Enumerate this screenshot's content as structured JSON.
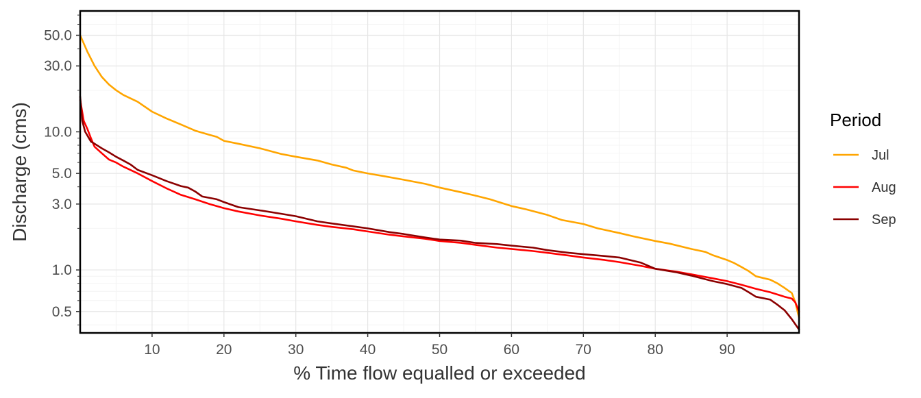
{
  "chart_data": {
    "type": "line",
    "xlabel": "% Time flow equalled or exceeded",
    "ylabel": "Discharge (cms)",
    "y_scale": "log",
    "xlim": [
      0,
      100
    ],
    "ylim": [
      0.35,
      75
    ],
    "x_ticks": [
      10,
      20,
      30,
      40,
      50,
      60,
      70,
      80,
      90
    ],
    "x_tick_labels": [
      "10",
      "20",
      "30",
      "40",
      "50",
      "60",
      "70",
      "80",
      "90"
    ],
    "y_ticks": [
      0.5,
      1,
      3,
      5,
      10,
      30,
      50
    ],
    "y_tick_labels": [
      "0.5",
      "1.0",
      "3.0",
      "5.0",
      "10.0",
      "30.0",
      "50.0"
    ],
    "grid": true,
    "legend": {
      "title": "Period",
      "position": "right"
    },
    "series": [
      {
        "name": "Jul",
        "color": "#FFA500",
        "points": [
          [
            0,
            50
          ],
          [
            1,
            38
          ],
          [
            2,
            30
          ],
          [
            3,
            25
          ],
          [
            4,
            22
          ],
          [
            5,
            20
          ],
          [
            6,
            18.5
          ],
          [
            8,
            16.5
          ],
          [
            10,
            14
          ],
          [
            12,
            12.5
          ],
          [
            14,
            11.3
          ],
          [
            16,
            10.2
          ],
          [
            18,
            9.5
          ],
          [
            19,
            9.2
          ],
          [
            20,
            8.6
          ],
          [
            22,
            8.2
          ],
          [
            25,
            7.6
          ],
          [
            28,
            6.9
          ],
          [
            30,
            6.6
          ],
          [
            33,
            6.2
          ],
          [
            35,
            5.8
          ],
          [
            37,
            5.5
          ],
          [
            38,
            5.25
          ],
          [
            40,
            5.0
          ],
          [
            42,
            4.8
          ],
          [
            45,
            4.5
          ],
          [
            48,
            4.2
          ],
          [
            50,
            3.95
          ],
          [
            53,
            3.65
          ],
          [
            55,
            3.45
          ],
          [
            57,
            3.25
          ],
          [
            60,
            2.9
          ],
          [
            62,
            2.75
          ],
          [
            65,
            2.5
          ],
          [
            67,
            2.3
          ],
          [
            70,
            2.15
          ],
          [
            72,
            2.0
          ],
          [
            75,
            1.85
          ],
          [
            77,
            1.75
          ],
          [
            80,
            1.62
          ],
          [
            82,
            1.55
          ],
          [
            85,
            1.42
          ],
          [
            87,
            1.35
          ],
          [
            88,
            1.28
          ],
          [
            90,
            1.18
          ],
          [
            91,
            1.12
          ],
          [
            92,
            1.05
          ],
          [
            93,
            0.98
          ],
          [
            94,
            0.9
          ],
          [
            96,
            0.85
          ],
          [
            97,
            0.8
          ],
          [
            98,
            0.74
          ],
          [
            99,
            0.68
          ],
          [
            99.5,
            0.58
          ],
          [
            100,
            0.45
          ]
        ]
      },
      {
        "name": "Aug",
        "color": "#FF0000",
        "points": [
          [
            0,
            17
          ],
          [
            0.5,
            12
          ],
          [
            1,
            10.5
          ],
          [
            1.5,
            9
          ],
          [
            2,
            7.8
          ],
          [
            3,
            7
          ],
          [
            4,
            6.3
          ],
          [
            5,
            6
          ],
          [
            6,
            5.6
          ],
          [
            8,
            5
          ],
          [
            10,
            4.4
          ],
          [
            12,
            3.9
          ],
          [
            14,
            3.5
          ],
          [
            16,
            3.25
          ],
          [
            18,
            3.0
          ],
          [
            20,
            2.8
          ],
          [
            22,
            2.65
          ],
          [
            25,
            2.48
          ],
          [
            28,
            2.35
          ],
          [
            30,
            2.25
          ],
          [
            33,
            2.12
          ],
          [
            35,
            2.05
          ],
          [
            38,
            1.97
          ],
          [
            40,
            1.9
          ],
          [
            43,
            1.8
          ],
          [
            45,
            1.75
          ],
          [
            48,
            1.68
          ],
          [
            50,
            1.62
          ],
          [
            53,
            1.57
          ],
          [
            55,
            1.52
          ],
          [
            58,
            1.45
          ],
          [
            60,
            1.42
          ],
          [
            63,
            1.37
          ],
          [
            65,
            1.33
          ],
          [
            68,
            1.27
          ],
          [
            70,
            1.23
          ],
          [
            73,
            1.18
          ],
          [
            75,
            1.14
          ],
          [
            78,
            1.07
          ],
          [
            80,
            1.02
          ],
          [
            83,
            0.97
          ],
          [
            85,
            0.93
          ],
          [
            88,
            0.87
          ],
          [
            90,
            0.83
          ],
          [
            92,
            0.78
          ],
          [
            94,
            0.73
          ],
          [
            96,
            0.69
          ],
          [
            98,
            0.64
          ],
          [
            99,
            0.62
          ],
          [
            99.5,
            0.58
          ],
          [
            100,
            0.5
          ]
        ]
      },
      {
        "name": "Sep",
        "color": "#8B0000",
        "points": [
          [
            0,
            18
          ],
          [
            0.3,
            12
          ],
          [
            0.7,
            10
          ],
          [
            1.5,
            8.5
          ],
          [
            2,
            8.2
          ],
          [
            3,
            7.6
          ],
          [
            4,
            7.1
          ],
          [
            5,
            6.6
          ],
          [
            6,
            6.2
          ],
          [
            7,
            5.8
          ],
          [
            8,
            5.3
          ],
          [
            10,
            4.85
          ],
          [
            12,
            4.4
          ],
          [
            14,
            4.05
          ],
          [
            15,
            3.95
          ],
          [
            16,
            3.7
          ],
          [
            17,
            3.4
          ],
          [
            19,
            3.25
          ],
          [
            20,
            3.1
          ],
          [
            22,
            2.85
          ],
          [
            25,
            2.7
          ],
          [
            28,
            2.55
          ],
          [
            30,
            2.45
          ],
          [
            33,
            2.25
          ],
          [
            35,
            2.17
          ],
          [
            38,
            2.07
          ],
          [
            40,
            2.0
          ],
          [
            43,
            1.88
          ],
          [
            45,
            1.82
          ],
          [
            48,
            1.72
          ],
          [
            50,
            1.66
          ],
          [
            53,
            1.63
          ],
          [
            55,
            1.57
          ],
          [
            58,
            1.54
          ],
          [
            60,
            1.5
          ],
          [
            63,
            1.45
          ],
          [
            65,
            1.39
          ],
          [
            68,
            1.33
          ],
          [
            70,
            1.3
          ],
          [
            73,
            1.26
          ],
          [
            75,
            1.23
          ],
          [
            78,
            1.13
          ],
          [
            80,
            1.02
          ],
          [
            83,
            0.96
          ],
          [
            85,
            0.91
          ],
          [
            88,
            0.83
          ],
          [
            90,
            0.79
          ],
          [
            92,
            0.74
          ],
          [
            93,
            0.69
          ],
          [
            94,
            0.64
          ],
          [
            96,
            0.61
          ],
          [
            97,
            0.56
          ],
          [
            98,
            0.51
          ],
          [
            99,
            0.44
          ],
          [
            100,
            0.37
          ]
        ]
      }
    ]
  }
}
